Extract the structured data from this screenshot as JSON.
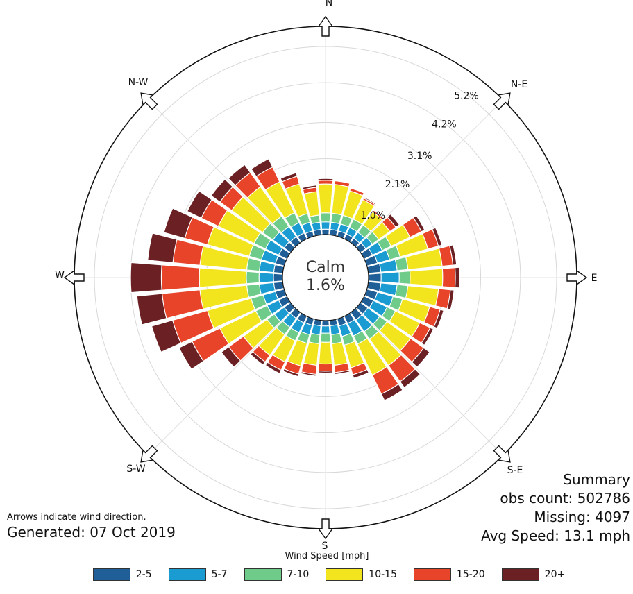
{
  "compass": {
    "n": "N",
    "ne": "N-E",
    "e": "E",
    "se": "S-E",
    "s": "S",
    "sw": "S-W",
    "w": "W",
    "nw": "N-W"
  },
  "calm": {
    "label": "Calm",
    "value": "1.6%"
  },
  "summary": {
    "title": "Summary",
    "obs": "obs count: 502786",
    "missing": "Missing: 4097",
    "avg": "Avg Speed: 13.1 mph"
  },
  "footer": {
    "arrows_note": "Arrows indicate wind direction.",
    "generated": "Generated: 07 Oct 2019"
  },
  "chart_data": {
    "type": "windrose",
    "calm_percent": 1.6,
    "rings": [
      1.0,
      2.1,
      3.1,
      4.2,
      5.2
    ],
    "ring_labels": [
      "1.0%",
      "2.1%",
      "3.1%",
      "4.2%",
      "5.2%"
    ],
    "legend_title": "Wind Speed [mph]",
    "bins": [
      {
        "label": "2-5",
        "color": "#1f5e96"
      },
      {
        "label": "5-7",
        "color": "#1a9bd2"
      },
      {
        "label": "7-10",
        "color": "#6ecb8a"
      },
      {
        "label": "10-15",
        "color": "#f2e51e"
      },
      {
        "label": "15-20",
        "color": "#e8442a"
      },
      {
        "label": "20+",
        "color": "#6b2124"
      }
    ],
    "directions": [
      0,
      10,
      20,
      30,
      40,
      50,
      60,
      70,
      80,
      90,
      100,
      110,
      120,
      130,
      140,
      150,
      160,
      170,
      180,
      190,
      200,
      210,
      220,
      230,
      240,
      250,
      260,
      270,
      280,
      290,
      300,
      310,
      320,
      330,
      340,
      350
    ],
    "cumulative_percent": [
      [
        0.15,
        0.35,
        0.6,
        1.4,
        1.5,
        1.55
      ],
      [
        0.15,
        0.35,
        0.6,
        1.4,
        1.5,
        1.52
      ],
      [
        0.15,
        0.35,
        0.6,
        1.3,
        1.38,
        1.4
      ],
      [
        0.15,
        0.35,
        0.6,
        1.2,
        1.25,
        1.28
      ],
      [
        0.15,
        0.35,
        0.6,
        1.05,
        1.1,
        1.12
      ],
      [
        0.18,
        0.4,
        0.62,
        1.0,
        1.2,
        1.32
      ],
      [
        0.25,
        0.55,
        0.82,
        1.4,
        1.75,
        1.85
      ],
      [
        0.3,
        0.65,
        0.95,
        1.75,
        2.05,
        2.15
      ],
      [
        0.35,
        0.8,
        1.1,
        2.05,
        2.35,
        2.45
      ],
      [
        0.35,
        0.85,
        1.15,
        2.05,
        2.4,
        2.52
      ],
      [
        0.35,
        0.8,
        1.1,
        1.95,
        2.28,
        2.38
      ],
      [
        0.3,
        0.75,
        1.02,
        1.8,
        2.1,
        2.2
      ],
      [
        0.28,
        0.7,
        0.95,
        1.7,
        2.02,
        2.12
      ],
      [
        0.25,
        0.65,
        0.9,
        1.7,
        2.15,
        2.35
      ],
      [
        0.25,
        0.65,
        0.9,
        1.8,
        2.35,
        2.55
      ],
      [
        0.22,
        0.6,
        0.85,
        1.8,
        2.38,
        2.58
      ],
      [
        0.2,
        0.5,
        0.75,
        1.4,
        1.6,
        1.7
      ],
      [
        0.15,
        0.4,
        0.65,
        1.25,
        1.45,
        1.5
      ],
      [
        0.15,
        0.35,
        0.6,
        1.2,
        1.4,
        1.45
      ],
      [
        0.15,
        0.4,
        0.65,
        1.25,
        1.5,
        1.55
      ],
      [
        0.18,
        0.45,
        0.7,
        1.35,
        1.58,
        1.65
      ],
      [
        0.2,
        0.5,
        0.75,
        1.4,
        1.65,
        1.75
      ],
      [
        0.2,
        0.5,
        0.75,
        1.45,
        1.68,
        1.78
      ],
      [
        0.22,
        0.55,
        0.8,
        1.6,
        2.1,
        2.35
      ],
      [
        0.25,
        0.6,
        0.95,
        2.05,
        2.9,
        3.3
      ],
      [
        0.25,
        0.6,
        0.95,
        2.2,
        3.2,
        3.8
      ],
      [
        0.25,
        0.65,
        1.0,
        2.3,
        3.35,
        4.05
      ],
      [
        0.25,
        0.65,
        1.0,
        2.3,
        3.35,
        4.2
      ],
      [
        0.25,
        0.65,
        1.0,
        2.3,
        3.05,
        3.75
      ],
      [
        0.25,
        0.65,
        1.0,
        2.2,
        2.85,
        3.45
      ],
      [
        0.25,
        0.65,
        1.0,
        2.1,
        2.62,
        3.05
      ],
      [
        0.22,
        0.6,
        0.95,
        2.0,
        2.4,
        2.7
      ],
      [
        0.2,
        0.55,
        0.9,
        1.9,
        2.38,
        2.65
      ],
      [
        0.18,
        0.5,
        0.8,
        1.75,
        2.2,
        2.45
      ],
      [
        0.15,
        0.4,
        0.65,
        1.5,
        1.72,
        1.82
      ],
      [
        0.15,
        0.35,
        0.55,
        1.2,
        1.32,
        1.38
      ]
    ]
  }
}
